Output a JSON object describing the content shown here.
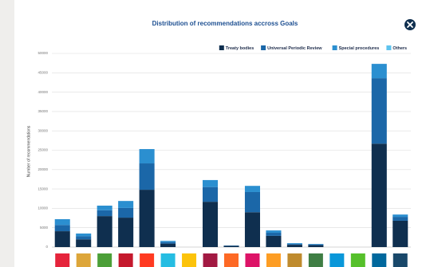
{
  "chart_data": {
    "type": "bar",
    "stacked": true,
    "title": "Distribution of recommendations accross Goals",
    "y_label": "Number of recommendations",
    "categories": [
      null,
      null,
      null,
      null,
      null,
      null,
      null,
      null,
      null,
      null,
      null,
      null,
      null,
      null,
      null,
      null,
      null
    ],
    "category_colors": [
      "#e5243b",
      "#dda63a",
      "#4c9f38",
      "#c5192d",
      "#ff3a21",
      "#26bde2",
      "#fcc30b",
      "#a21942",
      "#fd6925",
      "#dd1367",
      "#fd9d24",
      "#bf8b2e",
      "#3f7e44",
      "#0a97d9",
      "#56c02b",
      "#00689d",
      "#19486a"
    ],
    "series": [
      {
        "name": "Treaty bodies",
        "color": "#0f2f4f",
        "values": [
          4100,
          2000,
          8000,
          7600,
          14800,
          900,
          0,
          11700,
          300,
          9000,
          2900,
          600,
          500,
          0,
          0,
          26700,
          6800
        ]
      },
      {
        "name": "Universal Periodic Review",
        "color": "#1b67a8",
        "values": [
          1600,
          800,
          1500,
          2500,
          6800,
          400,
          0,
          3800,
          100,
          5200,
          800,
          200,
          200,
          0,
          0,
          16900,
          1000
        ]
      },
      {
        "name": "Special procedures",
        "color": "#2b8fd0",
        "values": [
          1500,
          700,
          1200,
          1800,
          3700,
          300,
          0,
          1800,
          0,
          1600,
          600,
          200,
          100,
          0,
          0,
          3700,
          600
        ]
      },
      {
        "name": "Others",
        "color": "#5ec3ee",
        "values": [
          0,
          0,
          0,
          0,
          0,
          0,
          0,
          0,
          0,
          0,
          0,
          0,
          0,
          0,
          0,
          0,
          0
        ]
      }
    ],
    "ylim": [
      0,
      50000
    ],
    "yticks": [
      0,
      5000,
      10000,
      15000,
      20000,
      25000,
      30000,
      35000,
      40000,
      45000,
      50000
    ],
    "grid": true,
    "legend": "top-right"
  }
}
